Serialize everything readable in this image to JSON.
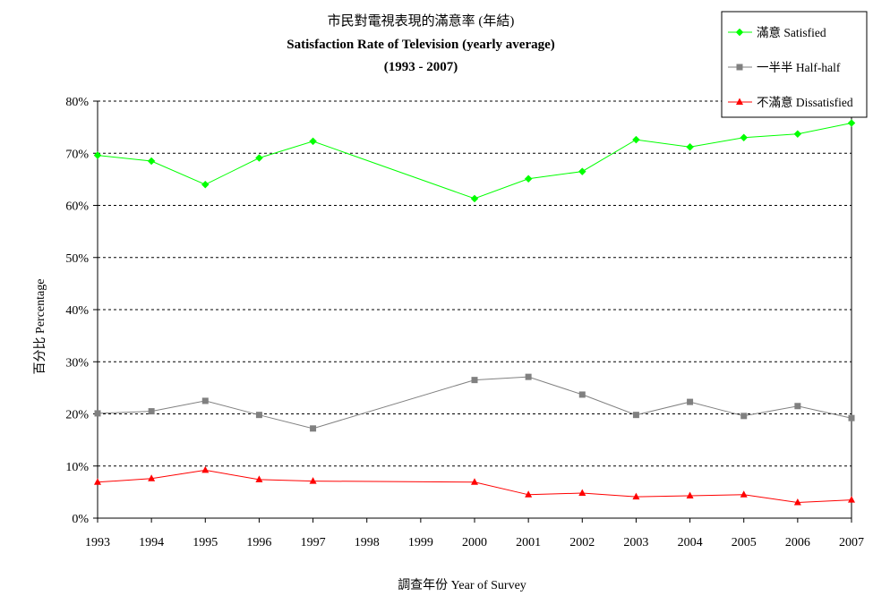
{
  "chart_data": {
    "type": "line",
    "title": "市民對電視表現的滿意率 (年結)",
    "subtitle": "Satisfaction Rate of Television (yearly average)",
    "period": "(1993 - 2007)",
    "xlabel": "調查年份 Year of Survey",
    "ylabel": "百分比 Percentage",
    "ylim": [
      0,
      80
    ],
    "yticks": [
      "0%",
      "10%",
      "20%",
      "30%",
      "40%",
      "50%",
      "60%",
      "70%",
      "80%"
    ],
    "categories": [
      "1993",
      "1994",
      "1995",
      "1996",
      "1997",
      "1998",
      "1999",
      "2000",
      "2001",
      "2002",
      "2003",
      "2004",
      "2005",
      "2006",
      "2007"
    ],
    "grid": "horizontal dashed",
    "legend_position": "top-right",
    "series": [
      {
        "name": "滿意 Satisfied",
        "color": "#00ff00",
        "marker": "diamond",
        "x": [
          "1993",
          "1994",
          "1995",
          "1996",
          "1997",
          "2000",
          "2001",
          "2002",
          "2003",
          "2004",
          "2005",
          "2006",
          "2007"
        ],
        "values": [
          69.6,
          68.5,
          64.0,
          69.1,
          72.3,
          61.3,
          65.1,
          66.5,
          72.6,
          71.2,
          73.0,
          73.7,
          75.8
        ]
      },
      {
        "name": "一半半 Half-half",
        "color": "#808080",
        "marker": "square",
        "x": [
          "1993",
          "1994",
          "1995",
          "1996",
          "1997",
          "2000",
          "2001",
          "2002",
          "2003",
          "2004",
          "2005",
          "2006",
          "2007"
        ],
        "values": [
          20.1,
          20.5,
          22.5,
          19.8,
          17.2,
          26.5,
          27.1,
          23.7,
          19.8,
          22.3,
          19.6,
          21.5,
          19.2
        ]
      },
      {
        "name": "不滿意 Dissatisfied",
        "color": "#ff0000",
        "marker": "triangle",
        "x": [
          "1993",
          "1994",
          "1995",
          "1996",
          "1997",
          "2000",
          "2001",
          "2002",
          "2003",
          "2004",
          "2005",
          "2006",
          "2007"
        ],
        "values": [
          6.9,
          7.6,
          9.2,
          7.4,
          7.1,
          6.9,
          4.5,
          4.8,
          4.1,
          4.3,
          4.5,
          3.0,
          3.5
        ]
      }
    ]
  }
}
